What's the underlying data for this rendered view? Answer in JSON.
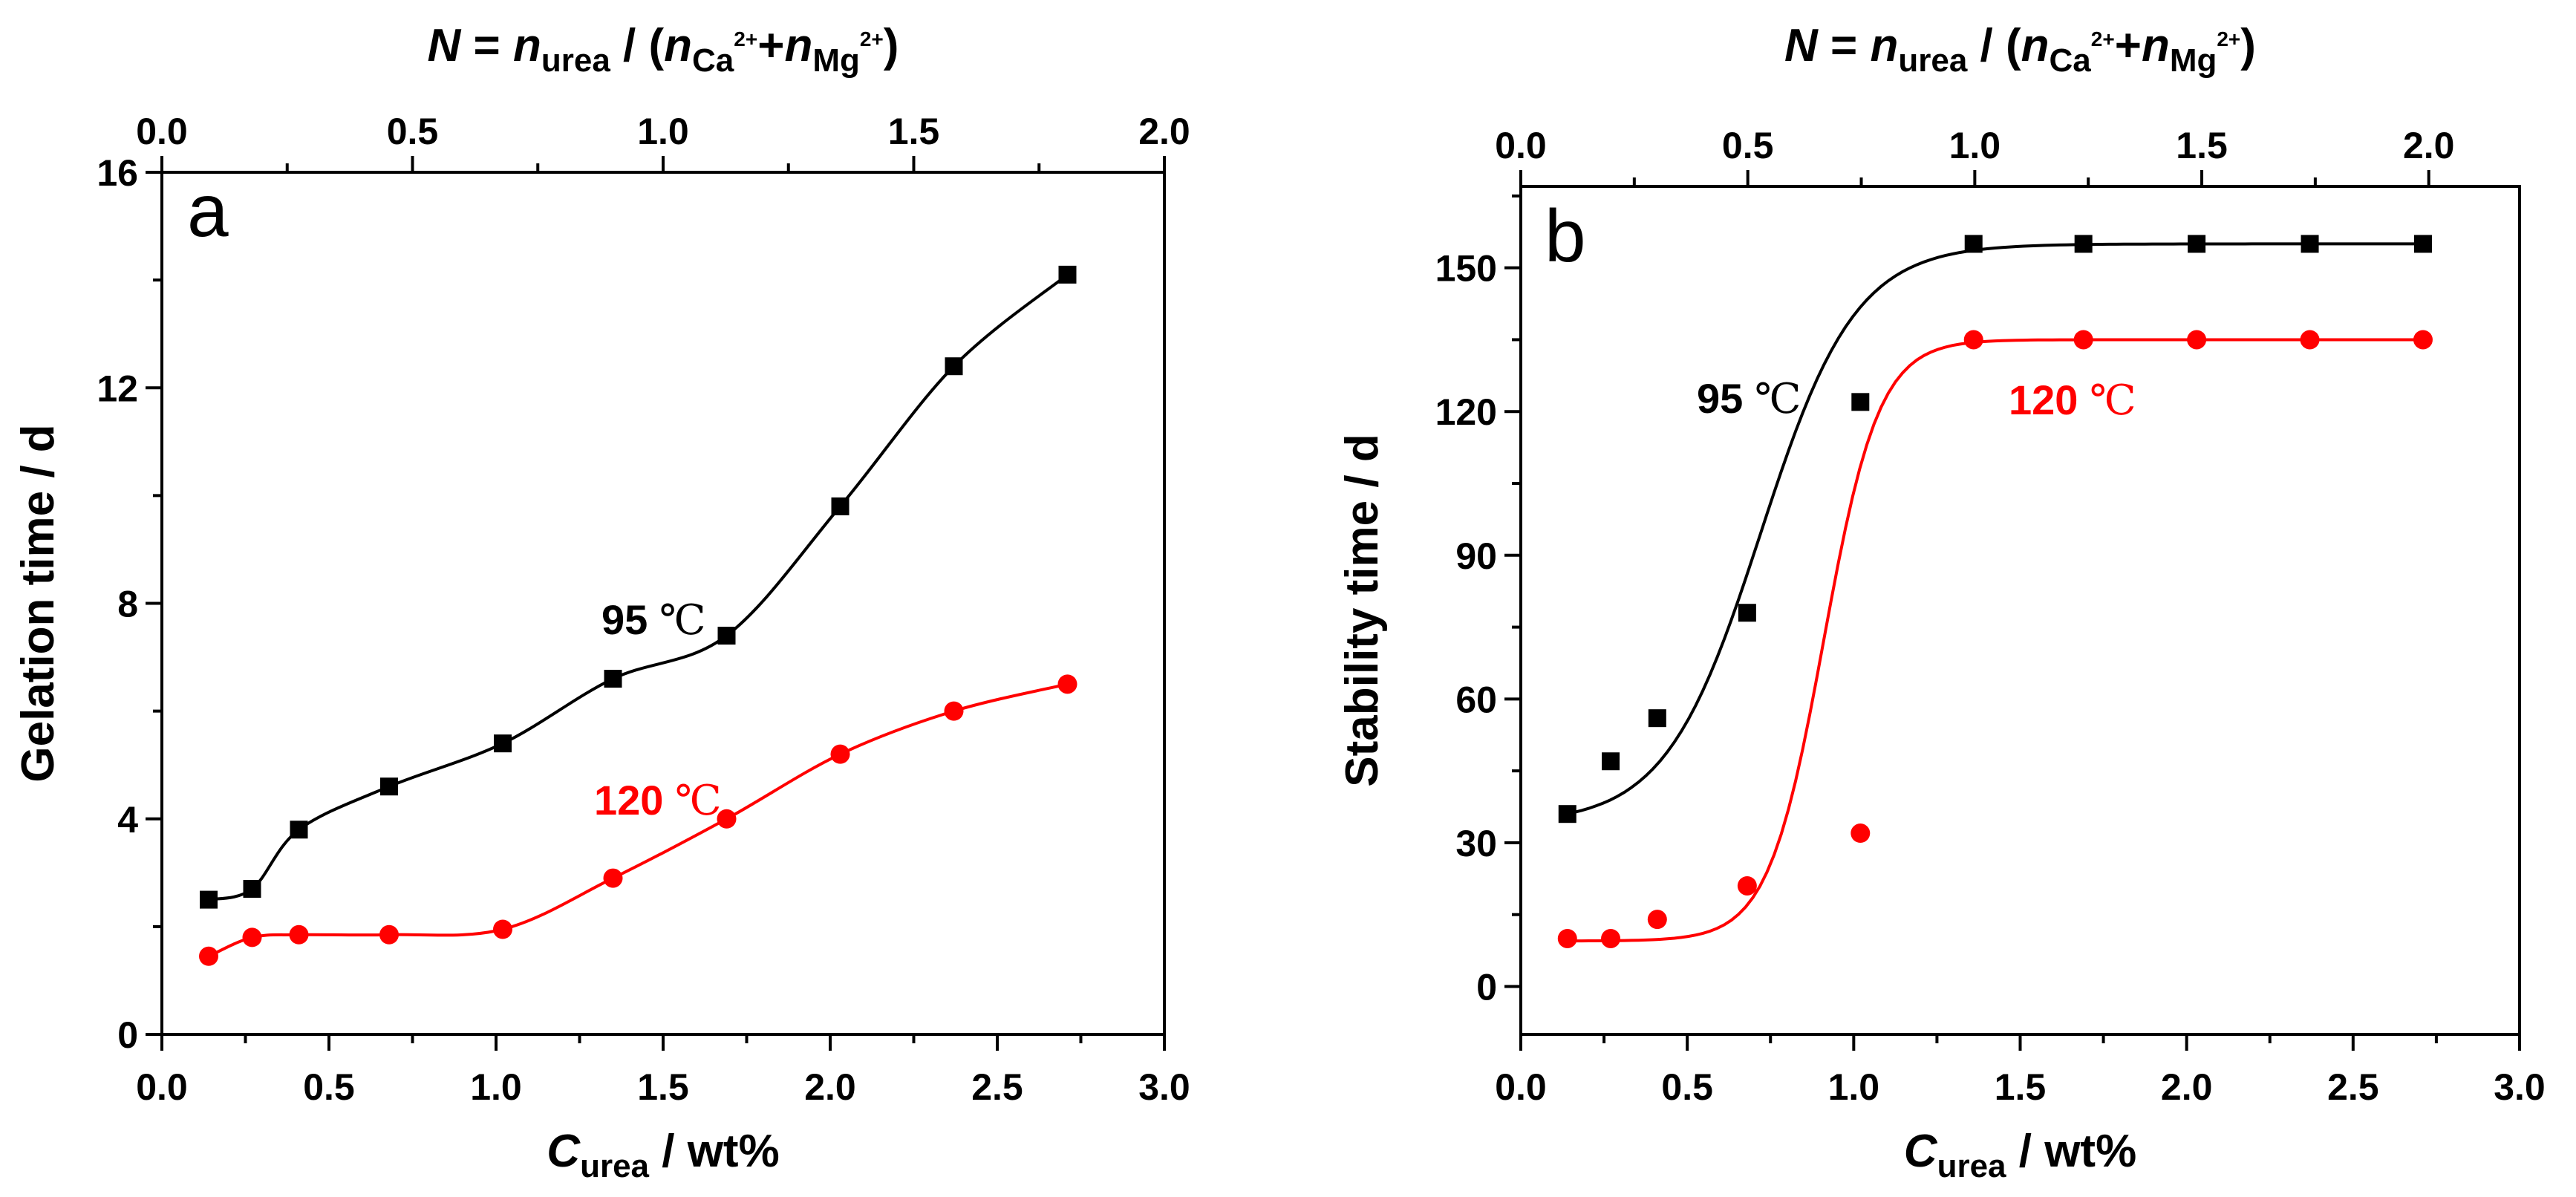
{
  "chart_data": [
    {
      "type": "scatter",
      "panel_label": "a",
      "xlabel": {
        "main": "C",
        "sub": "urea",
        "rest": " / wt%"
      },
      "ylabel": "Gelation time / d",
      "top_label": {
        "p1": "N",
        "p2": " = ",
        "p3": "n",
        "p3sub": "urea",
        "p4": " / (",
        "p5": "n",
        "p5sub": "Ca",
        "p5sup": "2+",
        "p6": "+",
        "p7": "n",
        "p7sub": "Mg",
        "p7sup": "2+",
        "p8": ")"
      },
      "xlim": [
        0.0,
        3.0
      ],
      "ylim": [
        0,
        16
      ],
      "top_xlim": [
        0.0,
        2.0
      ],
      "xticks": [
        "0.0",
        "0.5",
        "1.0",
        "1.5",
        "2.0",
        "2.5",
        "3.0"
      ],
      "yticks": [
        "0",
        "4",
        "8",
        "12",
        "16"
      ],
      "top_xticks": [
        "0.0",
        "0.5",
        "1.0",
        "1.5",
        "2.0"
      ],
      "series": [
        {
          "name": "95 ℃",
          "color": "#000000",
          "marker": "square",
          "x": [
            0.14,
            0.27,
            0.41,
            0.68,
            1.02,
            1.35,
            1.69,
            2.03,
            2.37,
            2.71
          ],
          "y": [
            2.5,
            2.7,
            3.8,
            4.6,
            5.4,
            6.6,
            7.4,
            9.8,
            12.4,
            14.1
          ]
        },
        {
          "name": "120 ℃",
          "color": "#ff0000",
          "marker": "circle",
          "x": [
            0.14,
            0.27,
            0.41,
            0.68,
            1.02,
            1.35,
            1.69,
            2.03,
            2.37,
            2.71
          ],
          "y": [
            1.45,
            1.8,
            1.85,
            1.85,
            1.95,
            2.9,
            4.0,
            5.2,
            6.0,
            6.5
          ]
        }
      ],
      "annotations": [
        {
          "num": "95",
          "unit": "℃",
          "color": "#000000"
        },
        {
          "num": "120",
          "unit": "℃",
          "color": "#ff0000"
        }
      ]
    },
    {
      "type": "scatter",
      "panel_label": "b",
      "xlabel": {
        "main": "C",
        "sub": "urea",
        "rest": " / wt%"
      },
      "ylabel": "Stability time / d",
      "top_label": {
        "p1": "N",
        "p2": " = ",
        "p3": "n",
        "p3sub": "urea",
        "p4": " / (",
        "p5": "n",
        "p5sub": "Ca",
        "p5sup": "2+",
        "p6": "+",
        "p7": "n",
        "p7sub": "Mg",
        "p7sup": "2+",
        "p8": ")"
      },
      "xlim": [
        0.0,
        3.0
      ],
      "ylim": [
        -10,
        167
      ],
      "top_xlim": [
        0.0,
        2.2
      ],
      "xticks": [
        "0.0",
        "0.5",
        "1.0",
        "1.5",
        "2.0",
        "2.5",
        "3.0"
      ],
      "yticks": [
        "0",
        "30",
        "60",
        "90",
        "120",
        "150"
      ],
      "top_xticks": [
        "0.0",
        "0.5",
        "1.0",
        "1.5",
        "2.0"
      ],
      "series": [
        {
          "name": "95 ℃",
          "color": "#000000",
          "marker": "square",
          "x": [
            0.14,
            0.27,
            0.41,
            0.68,
            1.02,
            1.36,
            1.69,
            2.03,
            2.37,
            2.71
          ],
          "y": [
            36,
            47,
            56,
            78,
            122,
            155,
            155,
            155,
            155,
            155
          ],
          "fit": {
            "lo": 34,
            "hi": 155,
            "x0": 0.72,
            "k": 7.0
          }
        },
        {
          "name": "120 ℃",
          "color": "#ff0000",
          "marker": "circle",
          "x": [
            0.14,
            0.27,
            0.41,
            0.68,
            1.02,
            1.36,
            1.69,
            2.03,
            2.37,
            2.71
          ],
          "y": [
            10,
            10,
            14,
            21,
            32,
            135,
            135,
            135,
            135,
            135
          ],
          "fit": {
            "lo": 9.5,
            "hi": 135,
            "x0": 0.91,
            "k": 12.0
          }
        }
      ],
      "annotations": [
        {
          "num": "95",
          "unit": "℃",
          "color": "#000000"
        },
        {
          "num": "120",
          "unit": "℃",
          "color": "#ff0000"
        }
      ]
    }
  ]
}
